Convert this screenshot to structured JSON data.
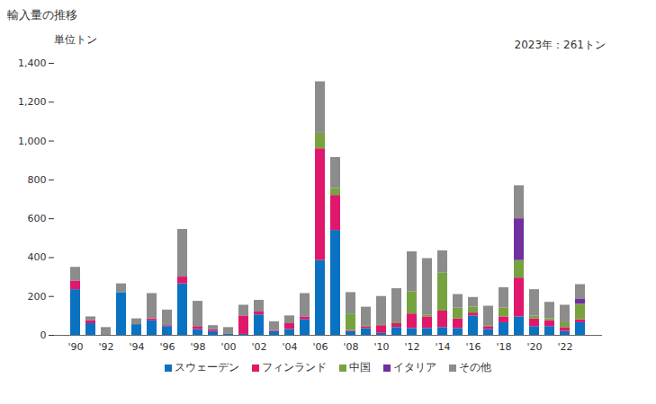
{
  "chart_data": {
    "type": "bar",
    "stacked": true,
    "title": "輸入量の推移",
    "y_label": "単位トン",
    "annotation": "2023年：261トン",
    "categories": [
      "'90",
      null,
      "'92",
      null,
      "'94",
      null,
      "'96",
      null,
      "'98",
      null,
      "'00",
      null,
      "'02",
      null,
      "'04",
      null,
      "'06",
      null,
      "'08",
      null,
      "'10",
      null,
      "'12",
      null,
      "'14",
      null,
      "'16",
      null,
      "'18",
      null,
      "'20",
      null,
      "'22",
      null
    ],
    "series": [
      {
        "name": "スウェーデン",
        "color": "#0a72c2",
        "values": [
          235,
          60,
          0,
          220,
          55,
          75,
          45,
          265,
          30,
          20,
          5,
          5,
          105,
          20,
          30,
          80,
          385,
          540,
          20,
          35,
          10,
          40,
          35,
          35,
          40,
          35,
          100,
          30,
          65,
          95,
          45,
          45,
          20,
          65
        ]
      },
      {
        "name": "フィンランド",
        "color": "#e0186c",
        "values": [
          45,
          15,
          0,
          0,
          0,
          10,
          5,
          35,
          15,
          10,
          0,
          95,
          15,
          5,
          30,
          15,
          575,
          180,
          5,
          10,
          40,
          20,
          75,
          60,
          85,
          50,
          15,
          15,
          30,
          200,
          40,
          30,
          20,
          15
        ]
      },
      {
        "name": "中国",
        "color": "#77a33f",
        "values": [
          0,
          0,
          0,
          0,
          0,
          0,
          0,
          0,
          0,
          0,
          0,
          0,
          0,
          0,
          0,
          0,
          80,
          35,
          85,
          5,
          5,
          5,
          115,
          10,
          195,
          55,
          30,
          5,
          45,
          90,
          15,
          10,
          25,
          80
        ]
      },
      {
        "name": "イタリア",
        "color": "#7030a0",
        "values": [
          0,
          0,
          0,
          0,
          0,
          0,
          0,
          0,
          0,
          0,
          0,
          0,
          0,
          0,
          0,
          0,
          0,
          0,
          0,
          0,
          0,
          0,
          0,
          0,
          0,
          0,
          0,
          0,
          0,
          215,
          0,
          0,
          0,
          25
        ]
      },
      {
        "name": "その他",
        "color": "#8c8c8c",
        "values": [
          70,
          20,
          40,
          45,
          30,
          130,
          80,
          245,
          130,
          20,
          35,
          55,
          60,
          45,
          40,
          120,
          265,
          160,
          110,
          95,
          145,
          175,
          205,
          290,
          115,
          70,
          50,
          100,
          105,
          170,
          135,
          85,
          90,
          76
        ]
      }
    ],
    "ylim": [
      0,
      1400
    ],
    "yticks": [
      0,
      200,
      400,
      600,
      800,
      {
        "value": 1000,
        "label": "1,000"
      },
      {
        "value": 1200,
        "label": "1,200"
      },
      {
        "value": 1400,
        "label": "1,400"
      }
    ],
    "grid": false,
    "legend": "bottom"
  }
}
